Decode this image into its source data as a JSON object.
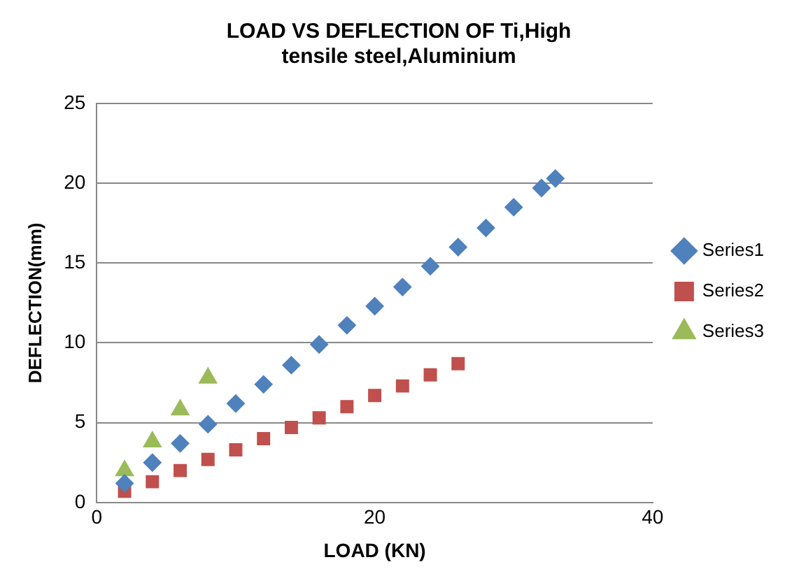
{
  "chart_data": {
    "type": "scatter",
    "title": "LOAD VS DEFLECTION OF Ti,High tensile steel,Aluminium",
    "xlabel": "LOAD (KN)",
    "ylabel": "DEFLECTION(mm)",
    "xlim": [
      0,
      40
    ],
    "xticks": [
      0,
      20,
      40
    ],
    "ylim": [
      0,
      25
    ],
    "yticks": [
      0,
      5,
      10,
      15,
      20,
      25
    ],
    "grid": "y",
    "legend": "right",
    "series": [
      {
        "name": "Series1",
        "color": "#4f81bd",
        "marker": "diamond",
        "x": [
          2,
          4,
          6,
          8,
          10,
          12,
          14,
          16,
          18,
          20,
          22,
          24,
          26,
          28,
          30,
          32,
          33
        ],
        "values": [
          1.2,
          2.5,
          3.7,
          4.9,
          6.2,
          7.4,
          8.6,
          9.9,
          11.1,
          12.3,
          13.5,
          14.8,
          16,
          17.2,
          18.5,
          19.7,
          20.3
        ]
      },
      {
        "name": "Series2",
        "color": "#c0504d",
        "marker": "square",
        "x": [
          2,
          4,
          6,
          8,
          10,
          12,
          14,
          16,
          18,
          20,
          22,
          24,
          26
        ],
        "values": [
          0.7,
          1.3,
          2,
          2.7,
          3.3,
          4,
          4.7,
          5.3,
          6,
          6.7,
          7.3,
          8,
          8.7
        ]
      },
      {
        "name": "Series3",
        "color": "#9bbb59",
        "marker": "triangle",
        "x": [
          2,
          4,
          6,
          8
        ],
        "values": [
          2,
          3.8,
          5.8,
          7.8
        ]
      }
    ]
  }
}
